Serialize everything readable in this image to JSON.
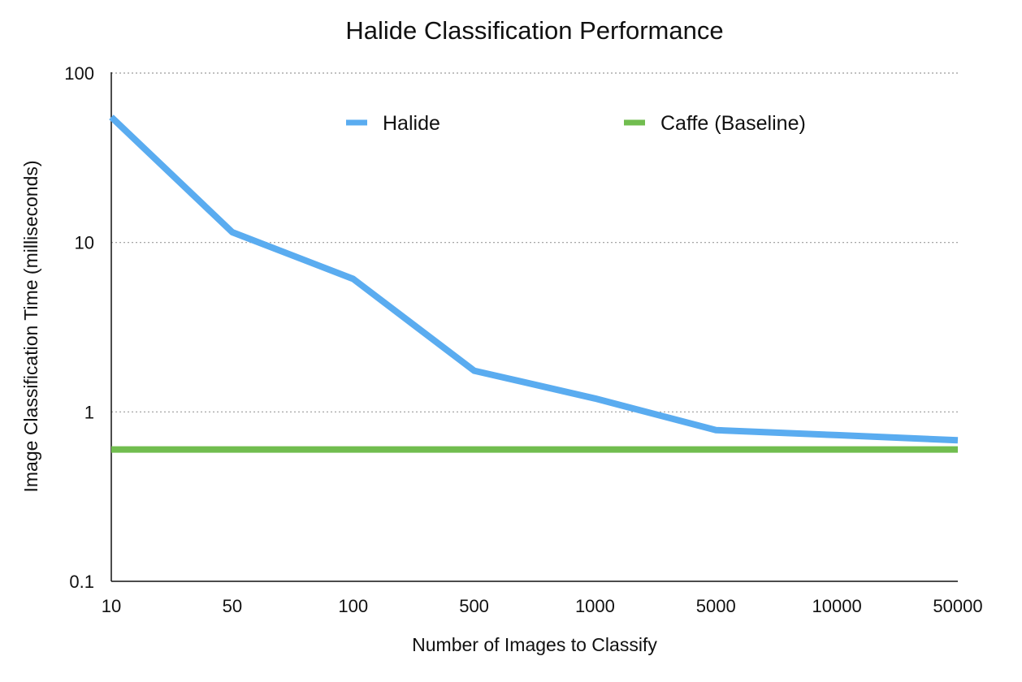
{
  "chart_data": {
    "type": "line",
    "title": "Halide Classification Performance",
    "xlabel": "Number of Images to Classify",
    "ylabel": "Image Classification Time (milliseconds)",
    "y_scale": "log",
    "ylim": [
      0.1,
      100
    ],
    "y_ticks": [
      "0.1",
      "1",
      "10",
      "100"
    ],
    "categories": [
      "10",
      "50",
      "100",
      "500",
      "1000",
      "5000",
      "10000",
      "50000"
    ],
    "grid": "horizontal dotted lines at y ticks",
    "legend_position": "top",
    "series": [
      {
        "name": "Halide",
        "color": "#5aacf0",
        "values": [
          55,
          11.5,
          6.1,
          1.75,
          1.2,
          0.78,
          0.73,
          0.68
        ]
      },
      {
        "name": "Caffe (Baseline)",
        "color": "#71bd4f",
        "values": [
          0.6,
          0.6,
          0.6,
          0.6,
          0.6,
          0.6,
          0.6,
          0.6
        ]
      }
    ]
  }
}
